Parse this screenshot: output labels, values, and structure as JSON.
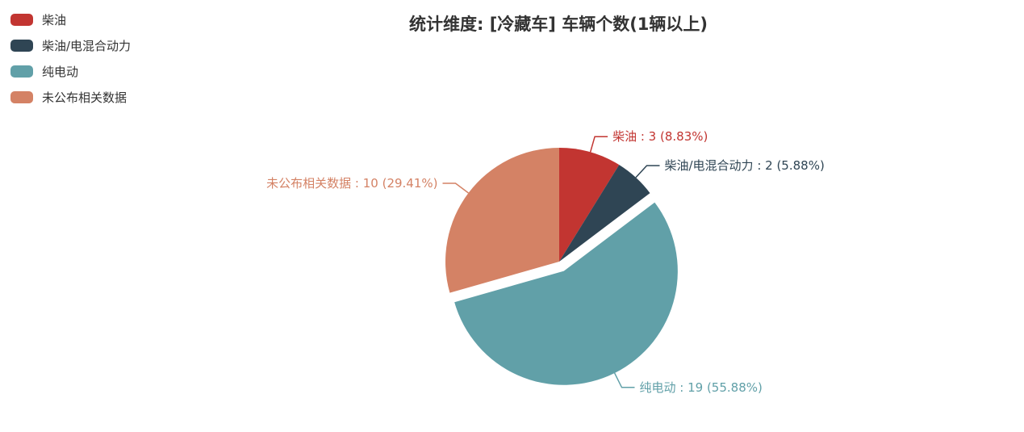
{
  "title": "统计维度: [冷藏车] 车辆个数(1辆以上)",
  "legend": {
    "position": "top-left",
    "items": [
      "柴油",
      "柴油/电混合动力",
      "纯电动",
      "未公布相关数据"
    ]
  },
  "chart_data": {
    "type": "pie",
    "title": "统计维度: [冷藏车] 车辆个数(1辆以上)",
    "start_angle": "top",
    "direction": "clockwise",
    "label_position": "outside",
    "legend_position": "top-left",
    "background_color": "#ffffff",
    "slices": [
      {
        "name": "柴油",
        "value": 3,
        "percent": 8.83,
        "label": "柴油 : 3 (8.83%)",
        "color": "#c23531",
        "exploded": false
      },
      {
        "name": "柴油/电混合动力",
        "value": 2,
        "percent": 5.88,
        "label": "柴油/电混合动力 : 2 (5.88%)",
        "color": "#2f4554",
        "exploded": false
      },
      {
        "name": "纯电动",
        "value": 19,
        "percent": 55.88,
        "label": "纯电动 : 19 (55.88%)",
        "color": "#61a0a8",
        "exploded": true
      },
      {
        "name": "未公布相关数据",
        "value": 10,
        "percent": 29.41,
        "label": "未公布相关数据 : 10 (29.41%)",
        "color": "#d48265",
        "exploded": false
      }
    ]
  }
}
